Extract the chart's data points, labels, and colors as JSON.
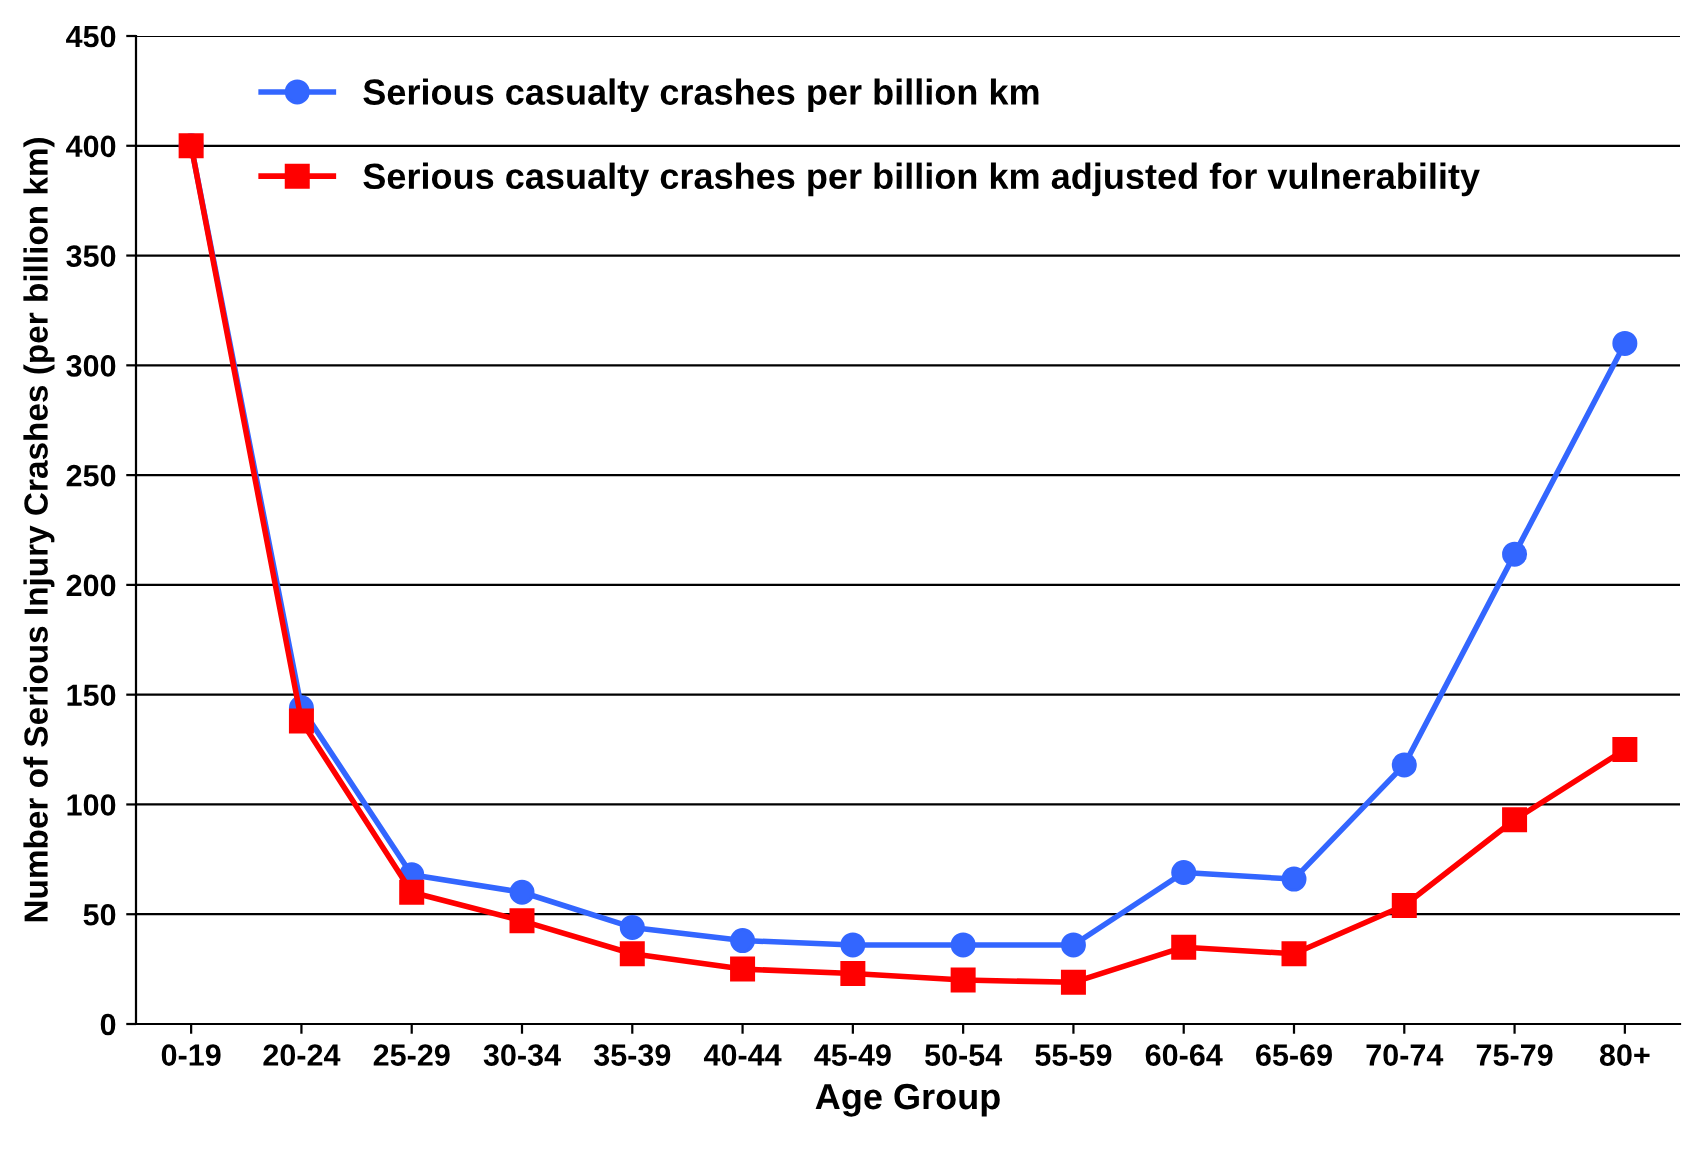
{
  "chart_data": {
    "type": "line",
    "xlabel": "Age Group",
    "ylabel": "Number of Serious Injury Crashes (per billion km)",
    "categories": [
      "0-19",
      "20-24",
      "25-29",
      "30-34",
      "35-39",
      "40-44",
      "45-49",
      "50-54",
      "55-59",
      "60-64",
      "65-69",
      "70-74",
      "75-79",
      "80+"
    ],
    "series": [
      {
        "name": "Serious casualty crashes per billion km",
        "color": "#3366ff",
        "marker": "circle",
        "values": [
          400,
          144,
          68,
          60,
          44,
          38,
          36,
          36,
          36,
          69,
          66,
          118,
          214,
          310
        ]
      },
      {
        "name": "Serious casualty crashes per billion km adjusted for vulnerability",
        "color": "#ff0000",
        "marker": "square",
        "values": [
          400,
          138,
          60,
          47,
          32,
          25,
          23,
          20,
          19,
          35,
          32,
          54,
          93,
          125
        ]
      }
    ],
    "ylim": [
      0,
      450
    ],
    "yticks": [
      0,
      50,
      100,
      150,
      200,
      250,
      300,
      350,
      400,
      450
    ],
    "grid": "y",
    "legend": "top left",
    "line_style": "solid"
  }
}
